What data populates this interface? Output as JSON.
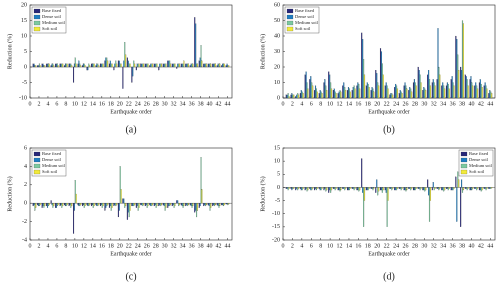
{
  "chart_data": [
    {
      "type": "bar",
      "caption": "(a)",
      "x_label": "Earthquake order",
      "y_label": "Reduction (%)",
      "x": [
        1,
        2,
        3,
        4,
        5,
        6,
        7,
        8,
        9,
        10,
        11,
        12,
        13,
        14,
        15,
        16,
        17,
        18,
        19,
        20,
        21,
        22,
        23,
        24,
        25,
        26,
        27,
        28,
        29,
        30,
        31,
        32,
        33,
        34,
        35,
        36,
        37,
        38,
        39,
        40,
        41,
        42,
        43,
        44
      ],
      "xlim": [
        0,
        45
      ],
      "xticks": [
        0,
        2,
        4,
        6,
        8,
        10,
        12,
        14,
        16,
        18,
        20,
        22,
        24,
        26,
        28,
        30,
        32,
        34,
        36,
        38,
        40,
        42,
        44
      ],
      "ylim": [
        -10,
        20
      ],
      "yticks": [
        -10,
        -5,
        0,
        5,
        10,
        15,
        20
      ],
      "legend": "top-left",
      "series": [
        {
          "name": "Base fixed",
          "color": "#27277a",
          "values": [
            1,
            0.5,
            1,
            1,
            0.5,
            1,
            1,
            0.5,
            1,
            -5,
            1,
            0.5,
            -1,
            1,
            0.5,
            1,
            2,
            1,
            -1,
            2,
            -7,
            3,
            -5,
            -1,
            1,
            1,
            0.5,
            1,
            -1,
            1,
            2,
            1,
            -0.5,
            1,
            1,
            0.5,
            16,
            2,
            1,
            1,
            1,
            0.5,
            0.5,
            0.5
          ]
        },
        {
          "name": "Dense soil",
          "color": "#1e7dc2",
          "values": [
            1,
            0.5,
            1,
            1,
            1,
            1,
            1,
            1,
            1,
            1,
            2,
            1,
            -1,
            1,
            1,
            1,
            3,
            2,
            1,
            2,
            2,
            2,
            -3,
            1,
            1,
            1,
            1,
            1,
            1,
            1,
            2,
            1,
            1,
            1,
            1,
            1,
            14,
            3,
            1,
            1,
            1,
            1,
            1,
            1
          ]
        },
        {
          "name": "Medium soil",
          "color": "#7cc9a0",
          "values": [
            0.5,
            1,
            0.5,
            1,
            1,
            1,
            1,
            1,
            1,
            3,
            1,
            1,
            1,
            1,
            1,
            1,
            3,
            1,
            2,
            1,
            8,
            1,
            2,
            1,
            1,
            1,
            1,
            1,
            1,
            1,
            2,
            1,
            1,
            1,
            1,
            1,
            1,
            7,
            1,
            1,
            1,
            1,
            1,
            0.5
          ]
        },
        {
          "name": "Soft soil",
          "color": "#f2ea3a",
          "values": [
            0.5,
            0.5,
            0.5,
            1,
            0.5,
            0.5,
            1,
            1,
            0.5,
            1,
            0.5,
            0.5,
            0.5,
            1,
            0.5,
            1,
            2,
            1,
            1,
            1,
            4,
            1,
            1,
            1,
            1,
            1,
            1,
            1,
            1,
            1,
            1,
            1,
            1,
            2,
            1,
            1,
            1,
            2,
            1,
            1,
            1,
            1,
            1,
            0.5
          ]
        }
      ]
    },
    {
      "type": "bar",
      "caption": "(b)",
      "x_label": "Earthquake order",
      "y_label": "Reduction (%)",
      "x": [
        1,
        2,
        3,
        4,
        5,
        6,
        7,
        8,
        9,
        10,
        11,
        12,
        13,
        14,
        15,
        16,
        17,
        18,
        19,
        20,
        21,
        22,
        23,
        24,
        25,
        26,
        27,
        28,
        29,
        30,
        31,
        32,
        33,
        34,
        35,
        36,
        37,
        38,
        39,
        40,
        41,
        42,
        43,
        44
      ],
      "xlim": [
        0,
        45
      ],
      "xticks": [
        0,
        2,
        4,
        6,
        8,
        10,
        12,
        14,
        16,
        18,
        20,
        22,
        24,
        26,
        28,
        30,
        32,
        34,
        36,
        38,
        40,
        42,
        44
      ],
      "ylim": [
        0,
        60
      ],
      "yticks": [
        0,
        10,
        20,
        30,
        40,
        50,
        60
      ],
      "legend": "top-left",
      "series": [
        {
          "name": "Base fixed",
          "color": "#27277a",
          "values": [
            2,
            2,
            1,
            3,
            15,
            12,
            5,
            3,
            10,
            17,
            5,
            3,
            8,
            5,
            5,
            8,
            42,
            8,
            5,
            18,
            32,
            8,
            2,
            7,
            3,
            8,
            5,
            10,
            20,
            5,
            15,
            10,
            12,
            8,
            8,
            12,
            40,
            20,
            15,
            12,
            8,
            10,
            8,
            3
          ]
        },
        {
          "name": "Dense soil",
          "color": "#1e7dc2",
          "values": [
            2,
            3,
            2,
            5,
            17,
            14,
            8,
            5,
            12,
            15,
            6,
            4,
            10,
            7,
            7,
            10,
            38,
            10,
            7,
            16,
            30,
            10,
            3,
            9,
            5,
            10,
            7,
            12,
            18,
            7,
            18,
            12,
            45,
            10,
            10,
            14,
            38,
            18,
            14,
            14,
            10,
            12,
            10,
            5
          ]
        },
        {
          "name": "Medium soil",
          "color": "#7cc9a0",
          "values": [
            3,
            2,
            3,
            4,
            10,
            10,
            6,
            4,
            8,
            10,
            4,
            5,
            7,
            6,
            8,
            9,
            25,
            9,
            6,
            10,
            22,
            8,
            3,
            8,
            4,
            8,
            6,
            10,
            15,
            6,
            12,
            10,
            20,
            8,
            9,
            10,
            28,
            50,
            12,
            10,
            8,
            9,
            8,
            4
          ]
        },
        {
          "name": "Soft soil",
          "color": "#f2ea3a",
          "values": [
            1,
            2,
            2,
            3,
            6,
            8,
            4,
            3,
            5,
            6,
            3,
            4,
            5,
            4,
            6,
            6,
            15,
            7,
            4,
            8,
            15,
            6,
            2,
            6,
            3,
            6,
            4,
            8,
            10,
            5,
            8,
            8,
            15,
            6,
            6,
            8,
            18,
            48,
            8,
            8,
            6,
            7,
            6,
            3
          ]
        }
      ]
    },
    {
      "type": "bar",
      "caption": "(c)",
      "x_label": "Earthquake order",
      "y_label": "Reduction (%)",
      "x": [
        1,
        2,
        3,
        4,
        5,
        6,
        7,
        8,
        9,
        10,
        11,
        12,
        13,
        14,
        15,
        16,
        17,
        18,
        19,
        20,
        21,
        22,
        23,
        24,
        25,
        26,
        27,
        28,
        29,
        30,
        31,
        32,
        33,
        34,
        35,
        36,
        37,
        38,
        39,
        40,
        41,
        42,
        43,
        44
      ],
      "xlim": [
        0,
        45
      ],
      "xticks": [
        0,
        2,
        4,
        6,
        8,
        10,
        12,
        14,
        16,
        18,
        20,
        22,
        24,
        26,
        28,
        30,
        32,
        34,
        36,
        38,
        40,
        42,
        44
      ],
      "ylim": [
        -4,
        6
      ],
      "yticks": [
        -4,
        -2,
        0,
        2,
        4,
        6
      ],
      "legend": "top-left",
      "series": [
        {
          "name": "Base fixed",
          "color": "#27277a",
          "values": [
            -0.3,
            -0.2,
            -0.5,
            -0.3,
            0.3,
            -0.5,
            -0.3,
            -0.2,
            -0.3,
            -3.3,
            -0.2,
            -0.3,
            -0.2,
            -0.3,
            -0.2,
            -0.3,
            -0.8,
            -0.5,
            -0.3,
            -1.5,
            0.5,
            -1.8,
            -0.3,
            -0.5,
            -0.2,
            -0.3,
            -0.2,
            -0.3,
            -0.3,
            -0.2,
            -0.5,
            -0.3,
            0.3,
            -0.2,
            -0.3,
            -0.2,
            -1,
            -0.5,
            -0.3,
            -0.2,
            -0.3,
            -0.2,
            -0.2,
            -0.1
          ]
        },
        {
          "name": "Dense soil",
          "color": "#1e7dc2",
          "values": [
            -0.2,
            -0.3,
            -0.3,
            -0.5,
            -0.2,
            -0.5,
            -0.2,
            -0.3,
            -0.2,
            -0.8,
            -0.3,
            -0.2,
            -0.3,
            -0.2,
            -0.3,
            -0.2,
            -0.5,
            -0.3,
            -0.2,
            -0.8,
            0.5,
            -1,
            -0.3,
            -0.3,
            -0.2,
            -0.2,
            -0.3,
            -0.2,
            -0.2,
            -0.3,
            -0.3,
            -0.2,
            0.3,
            -0.3,
            -0.2,
            -0.3,
            -0.8,
            -0.3,
            -0.2,
            -0.3,
            -0.2,
            -0.3,
            -0.2,
            -0.1
          ]
        },
        {
          "name": "Medium soil",
          "color": "#7cc9a0",
          "values": [
            -0.8,
            -0.3,
            -0.5,
            -0.3,
            -0.5,
            -0.3,
            -0.5,
            -0.3,
            -0.5,
            2.5,
            -0.3,
            -0.5,
            -0.3,
            -0.5,
            -0.3,
            -0.5,
            -0.3,
            -0.8,
            -0.3,
            4,
            -0.5,
            -1.5,
            -0.3,
            -0.8,
            -0.3,
            -0.5,
            -0.3,
            -0.5,
            -0.3,
            -0.8,
            -0.3,
            -0.5,
            -0.3,
            -0.5,
            -0.3,
            -0.5,
            -1.5,
            5,
            -0.3,
            -0.8,
            -0.3,
            -0.5,
            -0.3,
            -0.2
          ]
        },
        {
          "name": "Soft soil",
          "color": "#f2ea3a",
          "values": [
            -0.5,
            -0.2,
            -0.3,
            -0.2,
            -0.3,
            -0.2,
            -0.3,
            -0.2,
            -0.3,
            1,
            -0.2,
            -0.3,
            -0.2,
            -0.3,
            -0.2,
            -0.3,
            -0.2,
            -0.5,
            -0.2,
            1.5,
            -0.3,
            -0.8,
            -0.2,
            -0.5,
            -0.2,
            -0.3,
            -0.2,
            -0.3,
            -0.2,
            -0.5,
            -0.2,
            -0.3,
            -0.2,
            -0.3,
            -0.2,
            -0.3,
            -0.8,
            1.5,
            -0.2,
            -0.5,
            -0.2,
            -0.3,
            -0.2,
            -0.1
          ]
        }
      ]
    },
    {
      "type": "bar",
      "caption": "(d)",
      "x_label": "Earthquake order",
      "y_label": "Reduction (%)",
      "x": [
        1,
        2,
        3,
        4,
        5,
        6,
        7,
        8,
        9,
        10,
        11,
        12,
        13,
        14,
        15,
        16,
        17,
        18,
        19,
        20,
        21,
        22,
        23,
        24,
        25,
        26,
        27,
        28,
        29,
        30,
        31,
        32,
        33,
        34,
        35,
        36,
        37,
        38,
        39,
        40,
        41,
        42,
        43,
        44
      ],
      "xlim": [
        0,
        45
      ],
      "xticks": [
        0,
        2,
        4,
        6,
        8,
        10,
        12,
        14,
        16,
        18,
        20,
        22,
        24,
        26,
        28,
        30,
        32,
        34,
        36,
        38,
        40,
        42,
        44
      ],
      "ylim": [
        -20,
        15
      ],
      "yticks": [
        -20,
        -15,
        -10,
        -5,
        0,
        5,
        10,
        15
      ],
      "legend": "top-right",
      "series": [
        {
          "name": "Base fixed",
          "color": "#27277a",
          "values": [
            -0.5,
            -0.5,
            -1,
            -0.5,
            -1,
            -0.5,
            -1,
            -0.5,
            -1,
            -2,
            -0.5,
            -1,
            -0.5,
            -1,
            -0.5,
            -1,
            11,
            -1,
            -0.5,
            -2,
            -1,
            -1,
            -0.5,
            -1,
            -0.5,
            -1,
            -0.5,
            -1,
            -0.5,
            -1,
            3,
            -1,
            -0.5,
            -1,
            -0.5,
            -1,
            4,
            -15,
            -0.5,
            -1,
            -0.5,
            -1,
            -0.5,
            -0.5
          ]
        },
        {
          "name": "Dense soil",
          "color": "#1e7dc2",
          "values": [
            -0.5,
            -1,
            -0.5,
            -1,
            -0.5,
            -1,
            -0.5,
            -1,
            -0.5,
            -1,
            -0.5,
            -1,
            -0.5,
            -1,
            -0.5,
            -1,
            -2,
            -1,
            -0.5,
            3,
            -1,
            -2,
            -0.5,
            -1,
            -0.5,
            -1,
            -0.5,
            -1,
            -0.5,
            -1,
            -3,
            2,
            -0.5,
            -1,
            -0.5,
            -1,
            -13,
            3,
            -0.5,
            -1,
            -0.5,
            -1,
            -0.5,
            -0.5
          ]
        },
        {
          "name": "Medium soil",
          "color": "#7cc9a0",
          "values": [
            -1,
            -0.5,
            -1,
            -1,
            -1.5,
            -1,
            -1,
            -1,
            -1.5,
            -2,
            -1,
            -1.5,
            -1,
            -1,
            -1,
            -1.5,
            -15,
            -1,
            -1,
            -3,
            -2,
            -15,
            -1,
            -1,
            -1,
            -1.5,
            -1,
            -1,
            -1,
            -1.5,
            -13,
            -1,
            -1,
            -1.5,
            -1,
            -1,
            6,
            -2,
            -1,
            -1,
            -1,
            -1.5,
            -1,
            -0.5
          ]
        },
        {
          "name": "Soft soil",
          "color": "#f2ea3a",
          "values": [
            -0.5,
            -0.5,
            -0.5,
            -0.5,
            -1,
            -0.5,
            -0.5,
            -0.5,
            -1,
            -1,
            -0.5,
            -1,
            -0.5,
            -0.5,
            -0.5,
            -1,
            -5,
            -0.5,
            -0.5,
            -1.5,
            -1,
            -5,
            -0.5,
            -0.5,
            -0.5,
            -1,
            -0.5,
            -0.5,
            -0.5,
            -1,
            -5,
            -0.5,
            -0.5,
            -1,
            -0.5,
            -0.5,
            3,
            -1,
            -0.5,
            -0.5,
            -0.5,
            -1,
            -0.5,
            -0.3
          ]
        }
      ]
    }
  ]
}
